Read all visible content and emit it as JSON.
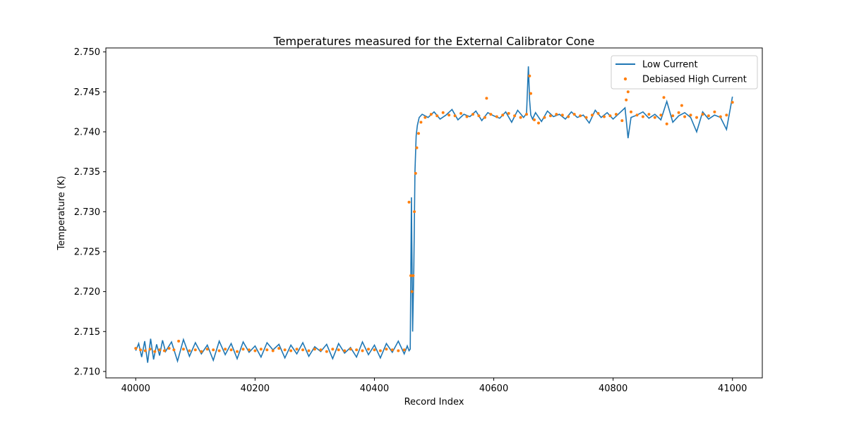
{
  "chart_data": {
    "type": "line",
    "title": "Temperatures measured for the External Calibrator Cone",
    "xlabel": "Record Index",
    "ylabel": "Temperature (K)",
    "xlim": [
      39950,
      41050
    ],
    "ylim": [
      2.7092,
      2.7505
    ],
    "x_ticks": [
      40000,
      40200,
      40400,
      40600,
      40800,
      41000
    ],
    "x_tick_labels": [
      "40000",
      "40200",
      "40400",
      "40600",
      "40800",
      "41000"
    ],
    "y_ticks": [
      2.71,
      2.715,
      2.72,
      2.725,
      2.73,
      2.735,
      2.74,
      2.745,
      2.75
    ],
    "y_tick_labels": [
      "2.710",
      "2.715",
      "2.720",
      "2.725",
      "2.730",
      "2.735",
      "2.740",
      "2.745",
      "2.750"
    ],
    "grid": false,
    "legend_position": "top-right",
    "series": [
      {
        "name": "Low Current",
        "style": "line",
        "color": "#1f77b4",
        "x": [
          40000,
          40005,
          40010,
          40015,
          40020,
          40025,
          40030,
          40035,
          40040,
          40045,
          40050,
          40060,
          40070,
          40080,
          40090,
          40100,
          40110,
          40120,
          40130,
          40140,
          40150,
          40160,
          40170,
          40180,
          40190,
          40200,
          40210,
          40220,
          40230,
          40240,
          40250,
          40260,
          40270,
          40280,
          40290,
          40300,
          40310,
          40320,
          40330,
          40340,
          40350,
          40360,
          40370,
          40380,
          40390,
          40400,
          40410,
          40420,
          40430,
          40440,
          40450,
          40455,
          40458,
          40460,
          40462,
          40464,
          40466,
          40468,
          40470,
          40472,
          40475,
          40480,
          40490,
          40500,
          40510,
          40520,
          40530,
          40540,
          40550,
          40560,
          40570,
          40580,
          40590,
          40600,
          40610,
          40620,
          40630,
          40640,
          40650,
          40655,
          40658,
          40660,
          40662,
          40665,
          40670,
          40680,
          40690,
          40700,
          40710,
          40720,
          40730,
          40740,
          40750,
          40760,
          40770,
          40780,
          40790,
          40800,
          40810,
          40820,
          40825,
          40830,
          40840,
          40850,
          40860,
          40870,
          40880,
          40890,
          40900,
          40910,
          40920,
          40930,
          40940,
          40950,
          40960,
          40970,
          40980,
          40990,
          41000
        ],
        "y": [
          2.7126,
          2.7135,
          2.7118,
          2.7138,
          2.7111,
          2.7141,
          2.7115,
          2.7134,
          2.712,
          2.7139,
          2.7125,
          2.7137,
          2.7113,
          2.714,
          2.7119,
          2.7136,
          2.7122,
          2.7133,
          2.7114,
          2.7138,
          2.7121,
          2.7135,
          2.7116,
          2.7137,
          2.7124,
          2.7132,
          2.7118,
          2.7136,
          2.7127,
          2.7134,
          2.7117,
          2.7133,
          2.7122,
          2.7136,
          2.7119,
          2.7131,
          2.7125,
          2.7134,
          2.7116,
          2.7135,
          2.7123,
          2.713,
          2.7118,
          2.7137,
          2.7121,
          2.7133,
          2.7117,
          2.7135,
          2.7124,
          2.7138,
          2.7122,
          2.7132,
          2.7126,
          2.7128,
          2.7318,
          2.715,
          2.723,
          2.735,
          2.7395,
          2.7408,
          2.7418,
          2.7422,
          2.7418,
          2.7425,
          2.7416,
          2.7421,
          2.7428,
          2.7415,
          2.7422,
          2.7419,
          2.7426,
          2.7414,
          2.7424,
          2.742,
          2.7417,
          2.7425,
          2.7412,
          2.7427,
          2.7418,
          2.7423,
          2.7482,
          2.744,
          2.7421,
          2.7416,
          2.7424,
          2.7413,
          2.7426,
          2.7419,
          2.7422,
          2.7416,
          2.7425,
          2.7418,
          2.7421,
          2.7411,
          2.7427,
          2.7418,
          2.7424,
          2.7416,
          2.7423,
          2.743,
          2.7392,
          2.7418,
          2.7421,
          2.7425,
          2.7417,
          2.7422,
          2.7415,
          2.7438,
          2.7412,
          2.742,
          2.7424,
          2.7418,
          2.74,
          2.7425,
          2.7416,
          2.7421,
          2.7418,
          2.7403,
          2.7444
        ]
      },
      {
        "name": "Debiased High Current",
        "style": "scatter",
        "color": "#ff7f0e",
        "x": [
          40000,
          40008,
          40016,
          40024,
          40032,
          40040,
          40048,
          40056,
          40064,
          40072,
          40080,
          40090,
          40100,
          40110,
          40120,
          40130,
          40140,
          40150,
          40160,
          40170,
          40180,
          40190,
          40200,
          40210,
          40220,
          40230,
          40240,
          40250,
          40260,
          40270,
          40280,
          40290,
          40300,
          40310,
          40320,
          40330,
          40340,
          40350,
          40360,
          40370,
          40380,
          40390,
          40400,
          40410,
          40420,
          40430,
          40440,
          40450,
          40458,
          40461,
          40463,
          40465,
          40467,
          40469,
          40471,
          40474,
          40478,
          40485,
          40495,
          40505,
          40515,
          40525,
          40535,
          40545,
          40555,
          40565,
          40575,
          40585,
          40588,
          40595,
          40605,
          40615,
          40625,
          40635,
          40645,
          40655,
          40660,
          40662,
          40668,
          40675,
          40685,
          40695,
          40705,
          40715,
          40725,
          40735,
          40745,
          40755,
          40765,
          40775,
          40785,
          40795,
          40805,
          40815,
          40822,
          40825,
          40830,
          40840,
          40850,
          40860,
          40870,
          40880,
          40885,
          40890,
          40900,
          40910,
          40915,
          40920,
          40930,
          40940,
          40950,
          40960,
          40970,
          40980,
          40990,
          41000
        ],
        "y": [
          2.7129,
          2.7127,
          2.7126,
          2.7128,
          2.7125,
          2.7127,
          2.7126,
          2.7129,
          2.7127,
          2.7138,
          2.7128,
          2.7126,
          2.7127,
          2.7125,
          2.7128,
          2.7127,
          2.7126,
          2.7128,
          2.7127,
          2.7125,
          2.7128,
          2.7127,
          2.7126,
          2.7128,
          2.7127,
          2.7126,
          2.7129,
          2.7127,
          2.7126,
          2.7128,
          2.7127,
          2.7126,
          2.7128,
          2.7127,
          2.7125,
          2.7128,
          2.7127,
          2.7126,
          2.7128,
          2.7127,
          2.7126,
          2.7128,
          2.7127,
          2.7126,
          2.7128,
          2.7127,
          2.7126,
          2.7127,
          2.7312,
          2.722,
          2.72,
          2.722,
          2.73,
          2.7348,
          2.738,
          2.7398,
          2.7412,
          2.7418,
          2.7422,
          2.742,
          2.7424,
          2.7421,
          2.742,
          2.7423,
          2.7419,
          2.7422,
          2.742,
          2.7418,
          2.7442,
          2.7422,
          2.7419,
          2.7421,
          2.7423,
          2.742,
          2.7418,
          2.7422,
          2.747,
          2.7448,
          2.7415,
          2.7411,
          2.7418,
          2.742,
          2.7422,
          2.7421,
          2.7419,
          2.7422,
          2.742,
          2.7418,
          2.7421,
          2.7423,
          2.7419,
          2.742,
          2.7422,
          2.7414,
          2.744,
          2.745,
          2.7425,
          2.7421,
          2.7419,
          2.7422,
          2.7418,
          2.7421,
          2.7443,
          2.741,
          2.742,
          2.7424,
          2.7433,
          2.7419,
          2.7421,
          2.7418,
          2.7422,
          2.742,
          2.7425,
          2.7419,
          2.7421,
          2.7437
        ]
      }
    ]
  }
}
